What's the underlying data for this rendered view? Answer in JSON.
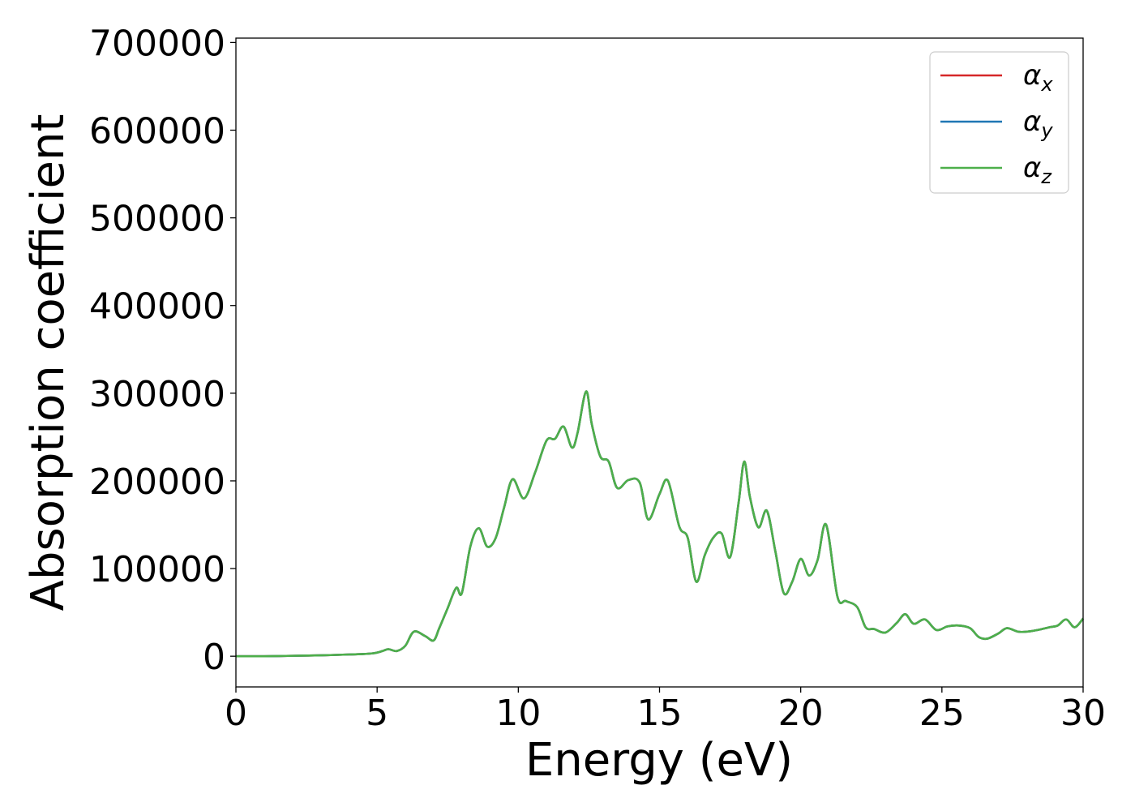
{
  "chart_data": {
    "type": "line",
    "title": "",
    "xlabel": "Energy (eV)",
    "ylabel": "Absorption coefficient",
    "xlim": [
      0,
      30
    ],
    "ylim": [
      -35000,
      705000
    ],
    "xticks": [
      0,
      5,
      10,
      15,
      20,
      25,
      30
    ],
    "xtick_labels": [
      "0",
      "5",
      "10",
      "15",
      "20",
      "25",
      "30"
    ],
    "yticks": [
      0,
      100000,
      200000,
      300000,
      400000,
      500000,
      600000,
      700000
    ],
    "ytick_labels": [
      "0",
      "100000",
      "200000",
      "300000",
      "400000",
      "500000",
      "600000",
      "700000"
    ],
    "grid": false,
    "legend_position": "top-right",
    "series": [
      {
        "name": "αx",
        "symbol": "α",
        "subscript": "x",
        "color": "#d62728"
      },
      {
        "name": "αy",
        "symbol": "α",
        "subscript": "y",
        "color": "#1f77b4"
      },
      {
        "name": "αz",
        "symbol": "α",
        "subscript": "z",
        "color": "#4daf4a"
      }
    ],
    "x": [
      0,
      1,
      2,
      3,
      4,
      4.5,
      4.9,
      5.2,
      5.4,
      5.7,
      6.0,
      6.3,
      6.7,
      7.0,
      7.2,
      7.5,
      7.8,
      8.0,
      8.3,
      8.6,
      8.9,
      9.2,
      9.5,
      9.8,
      10.2,
      10.6,
      11.0,
      11.3,
      11.6,
      11.9,
      12.1,
      12.4,
      12.6,
      12.9,
      13.2,
      13.5,
      13.9,
      14.3,
      14.6,
      15.0,
      15.3,
      15.7,
      16.0,
      16.3,
      16.6,
      16.9,
      17.2,
      17.5,
      17.8,
      18.0,
      18.2,
      18.5,
      18.8,
      19.1,
      19.4,
      19.7,
      20.0,
      20.3,
      20.6,
      20.9,
      21.3,
      21.6,
      22.0,
      22.3,
      22.6,
      23.0,
      23.4,
      23.7,
      24.0,
      24.4,
      24.8,
      25.2,
      25.6,
      26.0,
      26.3,
      26.6,
      27.0,
      27.3,
      27.7,
      28.0,
      28.4,
      28.8,
      29.1,
      29.4,
      29.7,
      30.0
    ],
    "values": [
      0,
      0,
      500,
      1000,
      2000,
      2500,
      3500,
      6000,
      8000,
      6000,
      12000,
      28000,
      23000,
      18000,
      32000,
      55000,
      78000,
      72000,
      125000,
      146000,
      125000,
      135000,
      170000,
      202000,
      180000,
      210000,
      246000,
      248000,
      262000,
      238000,
      255000,
      302000,
      265000,
      228000,
      222000,
      192000,
      201000,
      198000,
      156000,
      185000,
      200000,
      148000,
      135000,
      85000,
      115000,
      135000,
      140000,
      113000,
      175000,
      222000,
      182000,
      147000,
      166000,
      120000,
      72000,
      85000,
      111000,
      92000,
      110000,
      150000,
      68000,
      63000,
      56000,
      33000,
      31000,
      27000,
      38000,
      48000,
      37000,
      42000,
      30000,
      34000,
      35000,
      32000,
      22000,
      20000,
      26000,
      32000,
      28000,
      28000,
      30000,
      33000,
      35000,
      42000,
      33000,
      43000
    ]
  }
}
